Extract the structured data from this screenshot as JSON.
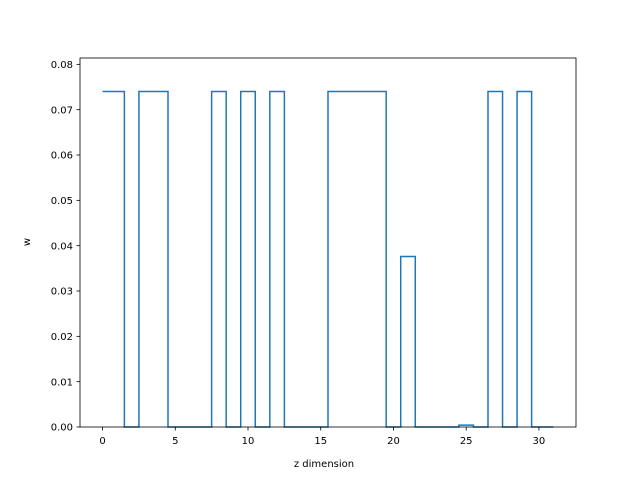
{
  "chart_data": {
    "type": "line",
    "step": "mid",
    "title": "",
    "xlabel": "z dimension",
    "ylabel": "w",
    "xlim": [
      -1.55,
      32.55
    ],
    "ylim": [
      0,
      0.0814
    ],
    "xticks": [
      0,
      5,
      10,
      15,
      20,
      25,
      30
    ],
    "yticks": [
      0.0,
      0.01,
      0.02,
      0.03,
      0.04,
      0.05,
      0.06,
      0.07,
      0.08
    ],
    "ytick_format": 2,
    "grid": false,
    "series": [
      {
        "color": "#1f77b4",
        "x": [
          0,
          1,
          2,
          3,
          4,
          5,
          6,
          7,
          8,
          9,
          10,
          11,
          12,
          13,
          14,
          15,
          16,
          17,
          18,
          19,
          20,
          21,
          22,
          23,
          24,
          25,
          26,
          27,
          28,
          29,
          30,
          31
        ],
        "y": [
          0.074,
          0.074,
          0,
          0.074,
          0.074,
          0,
          0,
          0,
          0.074,
          0,
          0.074,
          0,
          0.074,
          0,
          0,
          0,
          0.074,
          0.074,
          0.074,
          0.074,
          0,
          0.0376,
          0,
          0,
          0,
          0.0004,
          0,
          0.074,
          0,
          0.074,
          0,
          0
        ]
      }
    ]
  }
}
